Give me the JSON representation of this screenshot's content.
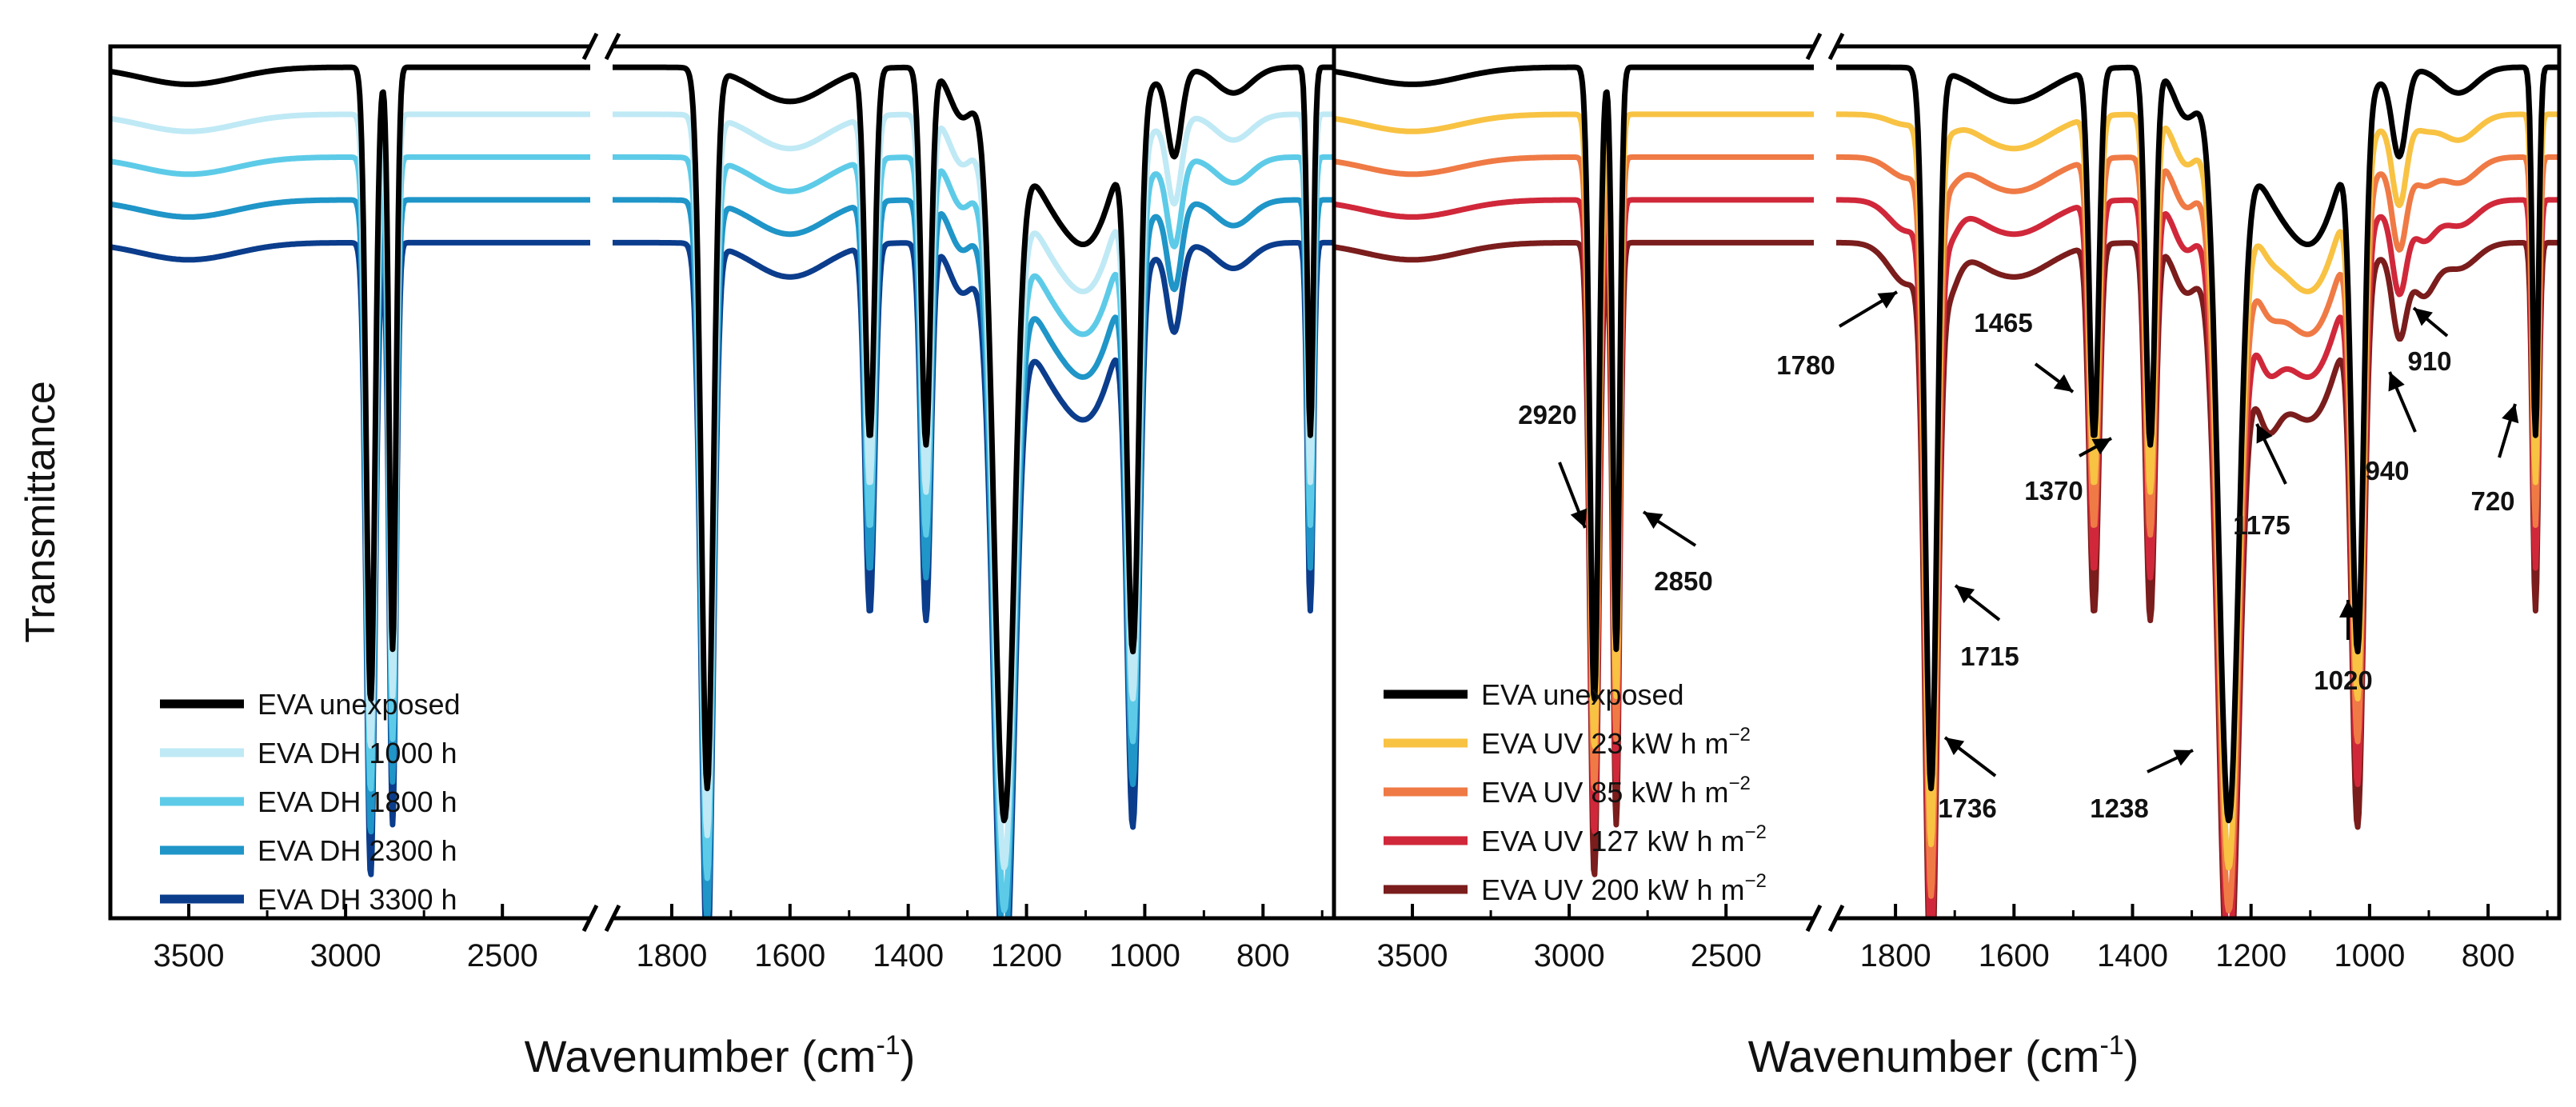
{
  "chart_data": {
    "type": "line",
    "ylabel": "Transmittance",
    "xlabel_prefix": "Wavenumber (cm",
    "xlabel_sup": "-1",
    "xlabel_suffix": ")",
    "x_axis": {
      "reversed": true,
      "broken": true,
      "segments": [
        [
          3750,
          2220
        ],
        [
          1900,
          680
        ]
      ],
      "ticks": [
        3500,
        3000,
        2500,
        1800,
        1600,
        1400,
        1200,
        1000,
        800
      ]
    },
    "panels": [
      {
        "name": "left",
        "legend_position": "bottom-left",
        "series": [
          {
            "name": "EVA unexposed",
            "color": "#000000",
            "offset": 0
          },
          {
            "name": "EVA DH 1000 h",
            "color": "#bfe9f5",
            "offset": 0.055
          },
          {
            "name": "EVA DH 1800 h",
            "color": "#5dcbe8",
            "offset": 0.105
          },
          {
            "name": "EVA DH 2300 h",
            "color": "#1f95c8",
            "offset": 0.155
          },
          {
            "name": "EVA DH 3300 h",
            "color": "#0b3d8c",
            "offset": 0.205
          }
        ],
        "annotations": []
      },
      {
        "name": "right",
        "legend_position": "bottom-left",
        "series": [
          {
            "name": "EVA unexposed",
            "color": "#000000",
            "offset": 0
          },
          {
            "name": "EVA UV 23 kW h m",
            "unit_sup": "−2",
            "color": "#f8c243",
            "offset": 0.055,
            "uv": 1
          },
          {
            "name": "EVA UV 85 kW h m",
            "unit_sup": "−2",
            "color": "#ef7a45",
            "offset": 0.105,
            "uv": 2
          },
          {
            "name": "EVA UV 127 kW h m",
            "unit_sup": "−2",
            "color": "#d0283a",
            "offset": 0.155,
            "uv": 3
          },
          {
            "name": "EVA UV 200 kW h m",
            "unit_sup": "−2",
            "color": "#7a1d1c",
            "offset": 0.205,
            "uv": 4
          }
        ],
        "annotations": [
          {
            "label": "2920",
            "x": 2920
          },
          {
            "label": "2850",
            "x": 2850
          },
          {
            "label": "1780",
            "x": 1780
          },
          {
            "label": "1715",
            "x": 1715
          },
          {
            "label": "1736",
            "x": 1736
          },
          {
            "label": "1465",
            "x": 1465
          },
          {
            "label": "1370",
            "x": 1370
          },
          {
            "label": "1238",
            "x": 1238
          },
          {
            "label": "1175",
            "x": 1175
          },
          {
            "label": "1020",
            "x": 1020
          },
          {
            "label": "940",
            "x": 940
          },
          {
            "label": "910",
            "x": 910
          },
          {
            "label": "720",
            "x": 720
          }
        ]
      }
    ],
    "peaks": [
      {
        "x": 2920,
        "depth": 0.74,
        "width": 14
      },
      {
        "x": 2850,
        "depth": 0.68,
        "width": 11
      },
      {
        "x": 1740,
        "depth": 0.84,
        "width": 10
      },
      {
        "x": 1465,
        "depth": 0.43,
        "width": 8
      },
      {
        "x": 1370,
        "depth": 0.44,
        "width": 8
      },
      {
        "x": 1238,
        "depth": 0.82,
        "width": 17
      },
      {
        "x": 1020,
        "depth": 0.62,
        "width": 10
      },
      {
        "x": 950,
        "depth": 0.1,
        "width": 12
      },
      {
        "x": 720,
        "depth": 0.43,
        "width": 5
      },
      {
        "x": 1600,
        "depth": 0.04,
        "width": 60
      },
      {
        "x": 1140,
        "depth": 0.16,
        "width": 70
      },
      {
        "x": 1080,
        "depth": 0.08,
        "width": 40
      },
      {
        "x": 1310,
        "depth": 0.05,
        "width": 20
      },
      {
        "x": 850,
        "depth": 0.03,
        "width": 30
      },
      {
        "x": 3500,
        "depth": 0.02,
        "width": 150
      }
    ]
  }
}
